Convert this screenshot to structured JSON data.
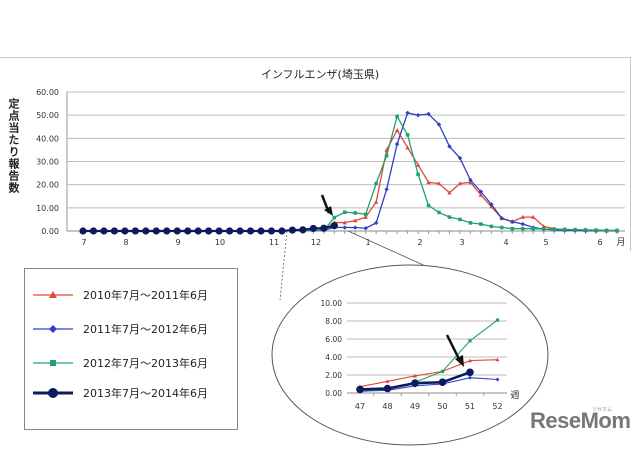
{
  "chart_data": [
    {
      "type": "line",
      "title": "インフルエンザ(埼玉県)",
      "ylabel": "定点当たり報告数",
      "xlabel": "月",
      "ylim": [
        0,
        60
      ],
      "yticks": [
        "0.00",
        "10.00",
        "20.00",
        "30.00",
        "40.00",
        "50.00",
        "60.00"
      ],
      "xtick_labels": [
        "7",
        "8",
        "9",
        "10",
        "11",
        "12",
        "1",
        "2",
        "3",
        "4",
        "5",
        "6"
      ],
      "grid": true,
      "series": [
        {
          "name": "2010年7月～2011年6月",
          "color": "#e0483a",
          "marker": "triangle",
          "weeks_from_dec_w3": [
            0,
            1,
            2,
            3,
            4,
            5,
            6,
            7,
            8,
            9,
            10,
            11,
            12,
            13,
            14,
            15,
            16,
            17,
            18,
            19,
            20,
            21,
            22,
            23,
            24,
            25,
            26,
            27,
            28
          ],
          "values": [
            3.7,
            3.6,
            4.5,
            6.0,
            12.5,
            35,
            43.5,
            36,
            28.5,
            21,
            20.5,
            16.5,
            20.5,
            21,
            15.5,
            10.5,
            5.5,
            4,
            6,
            6,
            2,
            1,
            0.5,
            0.5,
            0.3,
            0.2,
            0.1,
            0.1,
            0.1
          ]
        },
        {
          "name": "2011年7月～2012年6月",
          "color": "#2f3fc8",
          "marker": "diamond",
          "weeks_from_dec_w3": [
            0,
            1,
            2,
            3,
            4,
            5,
            6,
            7,
            8,
            9,
            10,
            11,
            12,
            13,
            14,
            15,
            16,
            17,
            18,
            19,
            20,
            21,
            22,
            23,
            24,
            25,
            26,
            27,
            28
          ],
          "values": [
            1.6,
            1.5,
            1.5,
            1.2,
            3.5,
            18,
            37.5,
            51,
            50,
            50.5,
            46,
            36.5,
            31.5,
            22,
            17,
            11.5,
            5.5,
            4,
            3,
            1.5,
            0.8,
            0.5,
            0.3,
            0.2,
            0.1,
            0.1,
            0.1,
            0.1,
            0.1
          ]
        },
        {
          "name": "2012年7月～2013年6月",
          "color": "#1fa36a",
          "marker": "square",
          "weeks_from_dec_w3": [
            0,
            1,
            2,
            3,
            4,
            5,
            6,
            7,
            8,
            9,
            10,
            11,
            12,
            13,
            14,
            15,
            16,
            17,
            18,
            19,
            20,
            21,
            22,
            23,
            24,
            25,
            26,
            27,
            28
          ],
          "values": [
            5.8,
            8.1,
            7.8,
            7.2,
            20.5,
            32.5,
            49.5,
            41.5,
            24.5,
            11,
            8,
            6,
            5,
            3.5,
            3,
            2,
            1.5,
            1,
            1,
            1,
            0.8,
            0.8,
            0.7,
            0.6,
            0.5,
            0.4,
            0.3,
            0.3,
            0.3
          ]
        },
        {
          "name": "2013年7月～2014年6月",
          "color": "#0d1a5c",
          "marker": "circle",
          "values_weeks_27_to_51": [
            0,
            0,
            0,
            0,
            0,
            0,
            0,
            0,
            0,
            0,
            0,
            0,
            0,
            0,
            0,
            0,
            0,
            0,
            0,
            0,
            0.4,
            0.5,
            1.1,
            1.2,
            2.3
          ]
        }
      ]
    },
    {
      "type": "line",
      "title": "inset: weeks 47-52",
      "xlabel": "週",
      "ylim": [
        0,
        10
      ],
      "yticks": [
        "0.00",
        "2.00",
        "4.00",
        "6.00",
        "8.00",
        "10.00"
      ],
      "categories": [
        "47",
        "48",
        "49",
        "50",
        "51",
        "52"
      ],
      "series": [
        {
          "name": "2010年7月～2011年6月",
          "color": "#e0483a",
          "values": [
            0.7,
            1.3,
            1.9,
            2.4,
            3.6,
            3.7
          ]
        },
        {
          "name": "2011年7月～2012年6月",
          "color": "#2f3fc8",
          "values": [
            0.2,
            0.3,
            0.8,
            1.0,
            1.7,
            1.5
          ]
        },
        {
          "name": "2012年7月～2013年6月",
          "color": "#1fa36a",
          "values": [
            0.3,
            0.4,
            1.2,
            2.4,
            5.8,
            8.1
          ]
        },
        {
          "name": "2013年7月～2014年6月",
          "color": "#0d1a5c",
          "values": [
            0.4,
            0.5,
            1.1,
            1.2,
            2.3,
            null
          ]
        }
      ]
    }
  ],
  "main": {
    "title": "インフルエンザ(埼玉県)",
    "ylabel": "定点当たり報告数",
    "month_unit": "月",
    "yticks": [
      "60.00",
      "50.00",
      "40.00",
      "30.00",
      "20.00",
      "10.00",
      "0.00"
    ],
    "months": [
      "7",
      "8",
      "9",
      "10",
      "11",
      "12",
      "1",
      "2",
      "3",
      "4",
      "5",
      "6"
    ]
  },
  "inset": {
    "yticks": [
      "10.00",
      "8.00",
      "6.00",
      "4.00",
      "2.00",
      "0.00"
    ],
    "weeks": [
      "47",
      "48",
      "49",
      "50",
      "51",
      "52"
    ],
    "week_unit": "週"
  },
  "legend": {
    "items": [
      {
        "label": "2010年7月～2011年6月",
        "color": "#e0483a"
      },
      {
        "label": "2011年7月～2012年6月",
        "color": "#2f3fc8"
      },
      {
        "label": "2012年7月～2013年6月",
        "color": "#1fa36a"
      },
      {
        "label": "2013年7月～2014年6月",
        "color": "#0d1a5c"
      }
    ]
  },
  "watermark": {
    "logo": "ReseMom",
    "sub": "リセマム"
  }
}
